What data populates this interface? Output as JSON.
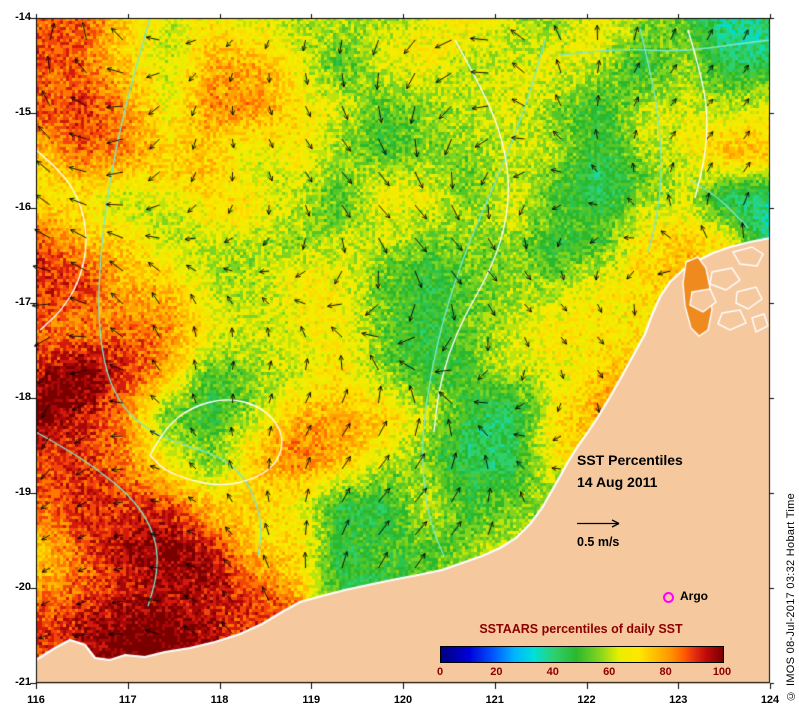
{
  "figure": {
    "title_line1": "SST Percentiles",
    "title_line2": "14 Aug 2011",
    "scale_label": "0.5 m/s",
    "argo_label": "Argo",
    "credit": "© IMOS 08-Jul-2017 03:32 Hobart Time",
    "argo_marker_color": "#ff00ff",
    "arrow_color": "#000000"
  },
  "axes": {
    "x_ticks": [
      "116",
      "117",
      "118",
      "119",
      "120",
      "121",
      "122",
      "123",
      "124"
    ],
    "y_ticks": [
      "-14",
      "-15",
      "-16",
      "-17",
      "-18",
      "-19",
      "-20",
      "-21"
    ]
  },
  "colorbar": {
    "title": "SSTAARS percentiles of daily SST",
    "ticks": [
      "0",
      "20",
      "40",
      "60",
      "80",
      "100"
    ],
    "label_color": "#8b0000",
    "stops": [
      [
        0,
        "#000080"
      ],
      [
        10,
        "#0000d8"
      ],
      [
        18,
        "#0050ff"
      ],
      [
        26,
        "#00b4ff"
      ],
      [
        33,
        "#00e0d8"
      ],
      [
        40,
        "#2ed06e"
      ],
      [
        48,
        "#2cb82c"
      ],
      [
        56,
        "#7fd41f"
      ],
      [
        63,
        "#e8ee00"
      ],
      [
        70,
        "#ffe800"
      ],
      [
        75,
        "#ffc400"
      ],
      [
        81,
        "#ff9800"
      ],
      [
        86,
        "#ff5f00"
      ],
      [
        90,
        "#e52c10"
      ],
      [
        94,
        "#bf0a0a"
      ],
      [
        100,
        "#7a0000"
      ]
    ]
  },
  "map": {
    "land_color": "#f5c89e",
    "coast_stroke": "#ffffff",
    "inlet_color": "#ef8a1e",
    "contour_cyan_color": "#7ce8c8",
    "contour_white_color": "#ffffff",
    "field_grid": {
      "cols": 18,
      "rows": 16,
      "values": [
        [
          78,
          82,
          75,
          70,
          75,
          65,
          60,
          65,
          63,
          63,
          65,
          63,
          58,
          62,
          50,
          48,
          38,
          45
        ],
        [
          85,
          88,
          78,
          65,
          77,
          72,
          62,
          50,
          63,
          65,
          63,
          62,
          60,
          55,
          45,
          60,
          50,
          48
        ],
        [
          86,
          90,
          80,
          65,
          80,
          75,
          63,
          62,
          55,
          62,
          64,
          62,
          50,
          48,
          60,
          62,
          62,
          70
        ],
        [
          78,
          85,
          76,
          66,
          74,
          64,
          62,
          52,
          50,
          62,
          63,
          62,
          60,
          52,
          62,
          63,
          72,
          75
        ],
        [
          75,
          78,
          65,
          63,
          62,
          64,
          62,
          48,
          60,
          62,
          55,
          60,
          45,
          42,
          60,
          70,
          45,
          35
        ],
        [
          84,
          78,
          74,
          64,
          63,
          55,
          50,
          60,
          62,
          55,
          60,
          58,
          42,
          45,
          68,
          75,
          72,
          40
        ],
        [
          88,
          92,
          76,
          72,
          62,
          60,
          62,
          60,
          50,
          48,
          60,
          62,
          58,
          68,
          74,
          78,
          75,
          72
        ],
        [
          90,
          85,
          80,
          74,
          63,
          62,
          61,
          62,
          52,
          50,
          60,
          62,
          70,
          75,
          75,
          75,
          75,
          75
        ],
        [
          93,
          95,
          85,
          75,
          55,
          62,
          64,
          70,
          62,
          52,
          50,
          62,
          72,
          78,
          78,
          78,
          78,
          78
        ],
        [
          95,
          92,
          84,
          55,
          52,
          62,
          72,
          75,
          73,
          62,
          50,
          48,
          70,
          75,
          75,
          75,
          75,
          75
        ],
        [
          88,
          90,
          78,
          64,
          55,
          70,
          76,
          74,
          65,
          62,
          48,
          42,
          65,
          70,
          70,
          70,
          70,
          70
        ],
        [
          85,
          86,
          82,
          85,
          78,
          75,
          64,
          45,
          50,
          70,
          52,
          55,
          60,
          65,
          65,
          65,
          65,
          65
        ],
        [
          80,
          88,
          92,
          95,
          90,
          78,
          75,
          45,
          50,
          52,
          55,
          60,
          60,
          60,
          60,
          60,
          60,
          60
        ],
        [
          85,
          88,
          93,
          96,
          92,
          82,
          78,
          52,
          45,
          50,
          55,
          60,
          60,
          60,
          60,
          60,
          60,
          60
        ],
        [
          90,
          94,
          96,
          97,
          95,
          88,
          80,
          60,
          50,
          50,
          55,
          60,
          60,
          60,
          60,
          60,
          60,
          60
        ],
        [
          88,
          92,
          95,
          96,
          94,
          88,
          82,
          70,
          60,
          55,
          55,
          60,
          60,
          60,
          60,
          60,
          60,
          60
        ]
      ]
    },
    "coastline": [
      [
        36,
        660
      ],
      [
        55,
        648
      ],
      [
        70,
        640
      ],
      [
        85,
        645
      ],
      [
        95,
        658
      ],
      [
        110,
        660
      ],
      [
        125,
        655
      ],
      [
        145,
        657
      ],
      [
        165,
        652
      ],
      [
        190,
        648
      ],
      [
        215,
        642
      ],
      [
        240,
        634
      ],
      [
        262,
        624
      ],
      [
        282,
        612
      ],
      [
        300,
        602
      ],
      [
        322,
        596
      ],
      [
        345,
        590
      ],
      [
        368,
        585
      ],
      [
        392,
        580
      ],
      [
        418,
        575
      ],
      [
        442,
        570
      ],
      [
        462,
        563
      ],
      [
        482,
        556
      ],
      [
        500,
        548
      ],
      [
        516,
        538
      ],
      [
        530,
        524
      ],
      [
        542,
        508
      ],
      [
        550,
        494
      ],
      [
        558,
        480
      ],
      [
        568,
        462
      ],
      [
        578,
        446
      ],
      [
        588,
        432
      ],
      [
        598,
        417
      ],
      [
        610,
        397
      ],
      [
        622,
        376
      ],
      [
        634,
        354
      ],
      [
        645,
        334
      ],
      [
        652,
        315
      ],
      [
        660,
        297
      ],
      [
        670,
        282
      ],
      [
        683,
        270
      ],
      [
        697,
        261
      ],
      [
        713,
        253
      ],
      [
        730,
        247
      ],
      [
        750,
        242
      ],
      [
        770,
        238
      ],
      [
        770,
        685
      ],
      [
        36,
        685
      ]
    ],
    "islands": [
      [
        [
          733,
          252
        ],
        [
          752,
          247
        ],
        [
          763,
          254
        ],
        [
          757,
          266
        ],
        [
          740,
          264
        ]
      ],
      [
        [
          712,
          272
        ],
        [
          732,
          268
        ],
        [
          740,
          280
        ],
        [
          726,
          290
        ],
        [
          710,
          284
        ]
      ],
      [
        [
          692,
          292
        ],
        [
          710,
          289
        ],
        [
          716,
          302
        ],
        [
          703,
          312
        ],
        [
          690,
          305
        ]
      ],
      [
        [
          737,
          292
        ],
        [
          756,
          287
        ],
        [
          762,
          299
        ],
        [
          748,
          309
        ],
        [
          736,
          303
        ]
      ],
      [
        [
          722,
          313
        ],
        [
          740,
          310
        ],
        [
          746,
          323
        ],
        [
          730,
          330
        ],
        [
          718,
          324
        ]
      ],
      [
        [
          752,
          318
        ],
        [
          764,
          314
        ],
        [
          768,
          326
        ],
        [
          756,
          332
        ]
      ]
    ],
    "inlet": [
      [
        686,
        262
      ],
      [
        698,
        257
      ],
      [
        706,
        268
      ],
      [
        710,
        288
      ],
      [
        712,
        310
      ],
      [
        708,
        330
      ],
      [
        699,
        336
      ],
      [
        691,
        328
      ],
      [
        685,
        306
      ],
      [
        683,
        283
      ]
    ],
    "contours_cyan": [
      [
        [
          150,
          18
        ],
        [
          138,
          60
        ],
        [
          122,
          120
        ],
        [
          108,
          190
        ],
        [
          100,
          260
        ],
        [
          98,
          320
        ],
        [
          106,
          374
        ],
        [
          123,
          408
        ],
        [
          148,
          430
        ],
        [
          177,
          443
        ],
        [
          205,
          451
        ],
        [
          228,
          462
        ],
        [
          246,
          480
        ],
        [
          257,
          504
        ],
        [
          262,
          530
        ],
        [
          258,
          556
        ]
      ],
      [
        [
          545,
          40
        ],
        [
          531,
          90
        ],
        [
          513,
          140
        ],
        [
          492,
          190
        ],
        [
          470,
          240
        ],
        [
          452,
          290
        ],
        [
          438,
          340
        ],
        [
          428,
          390
        ],
        [
          422,
          440
        ],
        [
          424,
          490
        ],
        [
          432,
          528
        ],
        [
          444,
          556
        ]
      ],
      [
        [
          640,
          28
        ],
        [
          652,
          78
        ],
        [
          660,
          128
        ],
        [
          662,
          178
        ],
        [
          656,
          222
        ],
        [
          648,
          252
        ]
      ],
      [
        [
          560,
          55
        ],
        [
          618,
          48
        ],
        [
          678,
          52
        ],
        [
          738,
          44
        ],
        [
          770,
          40
        ]
      ],
      [
        [
          36,
          432
        ],
        [
          68,
          450
        ],
        [
          98,
          470
        ],
        [
          128,
          494
        ],
        [
          148,
          520
        ],
        [
          158,
          550
        ],
        [
          156,
          580
        ],
        [
          148,
          606
        ]
      ],
      [
        [
          690,
          180
        ],
        [
          714,
          194
        ],
        [
          734,
          213
        ],
        [
          748,
          228
        ]
      ]
    ],
    "contours_white": [
      [
        [
          455,
          40
        ],
        [
          480,
          85
        ],
        [
          500,
          130
        ],
        [
          510,
          180
        ],
        [
          505,
          230
        ],
        [
          488,
          275
        ],
        [
          465,
          315
        ],
        [
          448,
          355
        ],
        [
          438,
          395
        ],
        [
          434,
          432
        ]
      ],
      [
        [
          150,
          455
        ],
        [
          166,
          426
        ],
        [
          194,
          406
        ],
        [
          227,
          398
        ],
        [
          257,
          405
        ],
        [
          277,
          422
        ],
        [
          284,
          444
        ],
        [
          274,
          467
        ],
        [
          249,
          481
        ],
        [
          219,
          486
        ],
        [
          189,
          480
        ],
        [
          164,
          470
        ],
        [
          150,
          455
        ]
      ],
      [
        [
          688,
          30
        ],
        [
          700,
          70
        ],
        [
          708,
          114
        ],
        [
          705,
          158
        ],
        [
          695,
          198
        ]
      ],
      [
        [
          36,
          150
        ],
        [
          60,
          170
        ],
        [
          80,
          200
        ],
        [
          88,
          240
        ],
        [
          80,
          280
        ],
        [
          62,
          310
        ],
        [
          40,
          330
        ]
      ]
    ]
  }
}
